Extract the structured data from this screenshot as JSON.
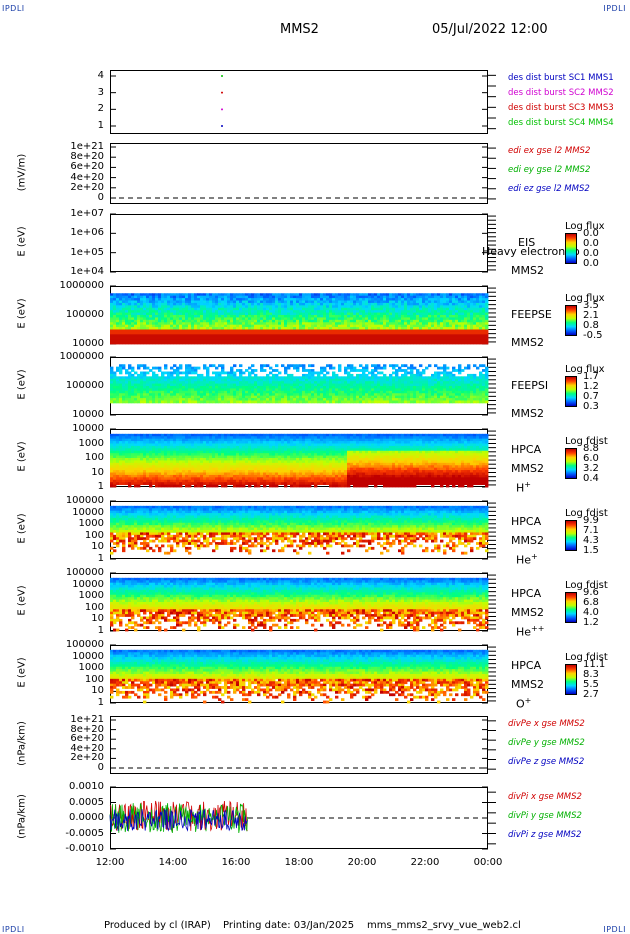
{
  "corners": {
    "tl": "IPDLI",
    "tr": "IPDLI",
    "bl": "IPDLI",
    "br": "IPDLI"
  },
  "header": {
    "spacecraft": "MMS2",
    "date": "05/Jul/2022 12:00"
  },
  "footer": {
    "producer": "Produced by cl (IRAP)",
    "print_date": "Printing date: 03/Jan/2025",
    "file": "mms_mms2_srvy_vue_web2.cl"
  },
  "colors": {
    "sc1": "#0000c0",
    "sc2": "#d000d0",
    "sc3": "#d00000",
    "sc4": "#00c000",
    "red": "#d00000",
    "green": "#00b000",
    "blue": "#0000c0"
  },
  "chart_data": {
    "type": "multi-panel time series",
    "x_ticks": [
      "12:00",
      "14:00",
      "16:00",
      "18:00",
      "20:00",
      "22:00",
      "00:00"
    ],
    "panels": [
      {
        "id": "burst",
        "type": "scatter",
        "ylabel": "",
        "yticks": [
          "4",
          "3",
          "2",
          "1"
        ],
        "series": [
          {
            "name": "des dist burst SC1 MMS1",
            "color": "#0000c0"
          },
          {
            "name": "des dist burst SC2 MMS2",
            "color": "#d000d0"
          },
          {
            "name": "des dist burst SC3 MMS3",
            "color": "#d00000"
          },
          {
            "name": "des dist burst SC4 MMS4",
            "color": "#00c000"
          }
        ]
      },
      {
        "id": "edi",
        "type": "line",
        "ylabel": "(mV/m)",
        "yticks": [
          "1e+21",
          "8e+20",
          "6e+20",
          "4e+20",
          "2e+20",
          "0"
        ],
        "series": [
          {
            "name": "edi ex gse l2 MMS2",
            "color": "#d00000"
          },
          {
            "name": "edi ey gse l2 MMS2",
            "color": "#00b000"
          },
          {
            "name": "edi ez gse l2 MMS2",
            "color": "#0000c0"
          }
        ]
      },
      {
        "id": "eis",
        "type": "heatmap",
        "ylabel": "E (eV)",
        "yticks": [
          "1e+07",
          "1e+06",
          "1e+05",
          "1e+04"
        ],
        "instrument": "EIS",
        "spacecraft": "MMS2",
        "note": "Heavy electron to",
        "colorbar": {
          "title": "Log flux",
          "values": [
            "0.0",
            "0.0",
            "0.0",
            "0.0"
          ]
        }
      },
      {
        "id": "feepse",
        "type": "heatmap",
        "ylabel": "E (eV)",
        "yticks": [
          "1000000",
          "100000",
          "10000"
        ],
        "instrument": "FEEPSE",
        "spacecraft": "MMS2",
        "colorbar": {
          "title": "Log flux",
          "values": [
            "3.5",
            "2.1",
            "0.8",
            "-0.5"
          ]
        }
      },
      {
        "id": "feepsi",
        "type": "heatmap",
        "ylabel": "E (eV)",
        "yticks": [
          "1000000",
          "100000",
          "10000"
        ],
        "instrument": "FEEPSI",
        "spacecraft": "MMS2",
        "colorbar": {
          "title": "Log flux",
          "values": [
            "1.7",
            "1.2",
            "0.7",
            "0.3"
          ]
        }
      },
      {
        "id": "hpca_h",
        "type": "heatmap",
        "ylabel": "E (eV)",
        "yticks": [
          "10000",
          "1000",
          "100",
          "10",
          "1"
        ],
        "instrument": "HPCA",
        "spacecraft": "MMS2",
        "species": "H",
        "charge": "+",
        "colorbar": {
          "title": "Log fdist",
          "values": [
            "8.8",
            "6.0",
            "3.2",
            "0.4"
          ]
        }
      },
      {
        "id": "hpca_he",
        "type": "heatmap",
        "ylabel": "E (eV)",
        "yticks": [
          "100000",
          "10000",
          "1000",
          "100",
          "10",
          "1"
        ],
        "instrument": "HPCA",
        "spacecraft": "MMS2",
        "species": "He",
        "charge": "+",
        "colorbar": {
          "title": "Log fdist",
          "values": [
            "9.9",
            "7.1",
            "4.3",
            "1.5"
          ]
        }
      },
      {
        "id": "hpca_he2",
        "type": "heatmap",
        "ylabel": "E (eV)",
        "yticks": [
          "100000",
          "10000",
          "1000",
          "100",
          "10",
          "1"
        ],
        "instrument": "HPCA",
        "spacecraft": "MMS2",
        "species": "He",
        "charge": "++",
        "colorbar": {
          "title": "Log fdist",
          "values": [
            "9.6",
            "6.8",
            "4.0",
            "1.2"
          ]
        }
      },
      {
        "id": "hpca_o",
        "type": "heatmap",
        "ylabel": "E (eV)",
        "yticks": [
          "100000",
          "10000",
          "1000",
          "100",
          "10",
          "1"
        ],
        "instrument": "HPCA",
        "spacecraft": "MMS2",
        "species": "O",
        "charge": "+",
        "colorbar": {
          "title": "Log fdist",
          "values": [
            "11.1",
            "8.3",
            "5.5",
            "2.7"
          ]
        }
      },
      {
        "id": "divpe",
        "type": "line",
        "ylabel": "(nPa/km)",
        "yticks": [
          "1e+21",
          "8e+20",
          "6e+20",
          "4e+20",
          "2e+20",
          "0"
        ],
        "series": [
          {
            "name": "divPe x gse MMS2",
            "color": "#d00000"
          },
          {
            "name": "divPe y gse MMS2",
            "color": "#00b000"
          },
          {
            "name": "divPe z gse MMS2",
            "color": "#0000c0"
          }
        ]
      },
      {
        "id": "divpi",
        "type": "line",
        "ylabel": "(nPa/km)",
        "yticks": [
          "0.0010",
          "0.0005",
          "0.0000",
          "-0.0005",
          "-0.0010"
        ],
        "series": [
          {
            "name": "divPi x gse MMS2",
            "color": "#d00000"
          },
          {
            "name": "divPi y gse MMS2",
            "color": "#00b000"
          },
          {
            "name": "divPi z gse MMS2",
            "color": "#0000c0"
          }
        ]
      }
    ]
  }
}
